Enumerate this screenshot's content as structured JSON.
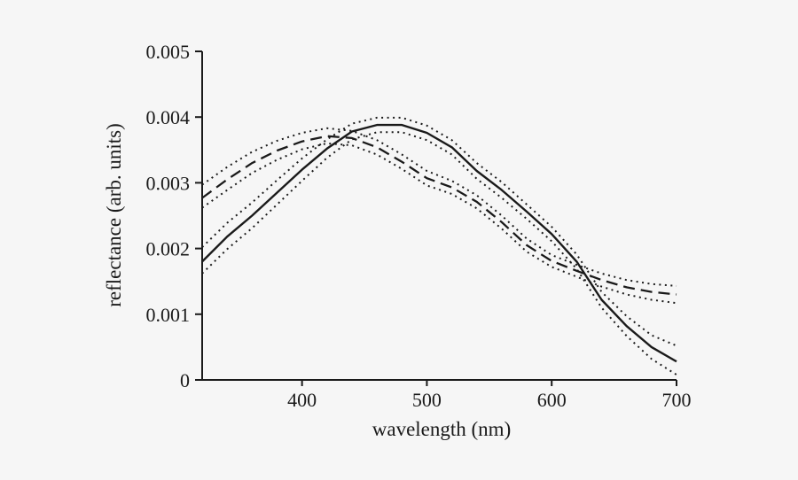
{
  "figure": {
    "description_labels": {
      "x_axis_title": "wavelength (nm)",
      "y_axis_title": "reflectance (arb. units)"
    }
  },
  "chart_data": {
    "type": "line",
    "title": "",
    "xlabel": "wavelength (nm)",
    "ylabel": "reflectance (arb. units)",
    "xlim": [
      320,
      700
    ],
    "ylim": [
      0,
      0.005
    ],
    "grid": false,
    "legend": "none",
    "x_ticks": [
      400,
      500,
      600,
      700
    ],
    "x_tick_labels": [
      "400",
      "500",
      "600",
      "700"
    ],
    "y_ticks": [
      0,
      0.001,
      0.002,
      0.003,
      0.004,
      0.005
    ],
    "y_tick_labels": [
      "0",
      "0.001",
      "0.002",
      "0.003",
      "0.004",
      "0.005"
    ],
    "x": [
      320,
      340,
      360,
      380,
      400,
      420,
      440,
      460,
      480,
      500,
      520,
      540,
      560,
      580,
      600,
      620,
      640,
      660,
      680,
      700
    ],
    "series": [
      {
        "name": "solid-upper-ci",
        "style": "dotted",
        "color": "#1a1a1a",
        "values": [
          0.00202,
          0.00239,
          0.0027,
          0.00304,
          0.00337,
          0.00366,
          0.0039,
          0.00399,
          0.00399,
          0.00387,
          0.00365,
          0.0033,
          0.00301,
          0.00267,
          0.00233,
          0.00191,
          0.00134,
          0.00097,
          0.00068,
          0.00052
        ]
      },
      {
        "name": "solid-lower-ci",
        "style": "dotted",
        "color": "#1a1a1a",
        "values": [
          0.00162,
          0.00199,
          0.00231,
          0.00267,
          0.00303,
          0.00338,
          0.00366,
          0.00377,
          0.00377,
          0.00365,
          0.00343,
          0.00306,
          0.00277,
          0.00245,
          0.00211,
          0.00169,
          0.0011,
          0.00067,
          0.00032,
          8e-05
        ]
      },
      {
        "name": "dashed-upper-ci",
        "style": "dotted",
        "color": "#1a1a1a",
        "values": [
          0.00297,
          0.00324,
          0.00347,
          0.00364,
          0.00376,
          0.00383,
          0.00379,
          0.00365,
          0.00343,
          0.00318,
          0.00303,
          0.00281,
          0.0025,
          0.00215,
          0.0019,
          0.00175,
          0.00162,
          0.00152,
          0.00146,
          0.00143
        ]
      },
      {
        "name": "dashed-lower-ci",
        "style": "dotted",
        "color": "#1a1a1a",
        "values": [
          0.00262,
          0.00289,
          0.00315,
          0.00335,
          0.00351,
          0.0036,
          0.00357,
          0.00343,
          0.00321,
          0.00296,
          0.00283,
          0.00261,
          0.0023,
          0.00195,
          0.00172,
          0.00157,
          0.00142,
          0.0013,
          0.00122,
          0.00117
        ]
      },
      {
        "name": "dashed-mean",
        "style": "dashed",
        "color": "#1a1a1a",
        "values": [
          0.00277,
          0.00305,
          0.0033,
          0.00349,
          0.00363,
          0.00371,
          0.00368,
          0.00354,
          0.00332,
          0.00307,
          0.00293,
          0.00271,
          0.0024,
          0.00205,
          0.00181,
          0.00166,
          0.00152,
          0.00141,
          0.00134,
          0.0013
        ]
      },
      {
        "name": "solid-mean",
        "style": "solid",
        "color": "#1a1a1a",
        "values": [
          0.0018,
          0.00218,
          0.0025,
          0.00285,
          0.0032,
          0.00352,
          0.00378,
          0.00388,
          0.00388,
          0.00376,
          0.00354,
          0.00318,
          0.00289,
          0.00256,
          0.00222,
          0.0018,
          0.00122,
          0.00082,
          0.0005,
          0.00028
        ]
      }
    ],
    "colors": {
      "line": "#1a1a1a",
      "background": "#f6f6f6"
    }
  }
}
